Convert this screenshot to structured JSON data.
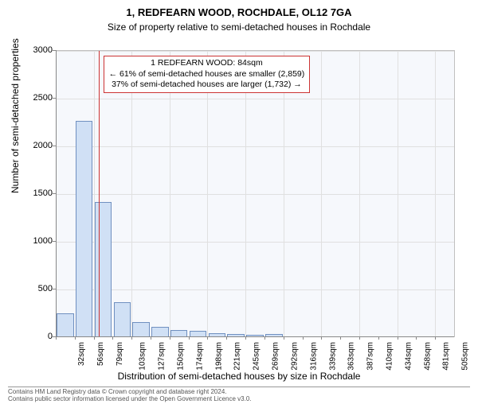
{
  "title": "1, REDFEARN WOOD, ROCHDALE, OL12 7GA",
  "subtitle": "Size of property relative to semi-detached houses in Rochdale",
  "ylabel": "Number of semi-detached properties",
  "xlabel": "Distribution of semi-detached houses by size in Rochdale",
  "annotation": {
    "line1": "1 REDFEARN WOOD: 84sqm",
    "line2": "← 61% of semi-detached houses are smaller (2,859)",
    "line3": "37% of semi-detached houses are larger (1,732) →"
  },
  "footer": {
    "line1": "Contains HM Land Registry data © Crown copyright and database right 2024.",
    "line2": "Contains public sector information licensed under the Open Government Licence v3.0."
  },
  "chart": {
    "type": "bar",
    "ylim": [
      0,
      3000
    ],
    "ytick_step": 500,
    "xticks": [
      "32sqm",
      "56sqm",
      "79sqm",
      "103sqm",
      "127sqm",
      "150sqm",
      "174sqm",
      "198sqm",
      "221sqm",
      "245sqm",
      "269sqm",
      "292sqm",
      "316sqm",
      "339sqm",
      "363sqm",
      "387sqm",
      "410sqm",
      "434sqm",
      "458sqm",
      "481sqm",
      "505sqm"
    ],
    "values": [
      250,
      2270,
      1420,
      370,
      160,
      110,
      75,
      65,
      45,
      35,
      25,
      30,
      0,
      0,
      0,
      0,
      0,
      0,
      0,
      0,
      0
    ],
    "marker_index": 2.25,
    "bar_color": "#d0e0f5",
    "bar_border": "#7090c0",
    "background": "#f6f8fc",
    "grid_color": "#e0e0e0",
    "marker_color": "#cc3333"
  }
}
